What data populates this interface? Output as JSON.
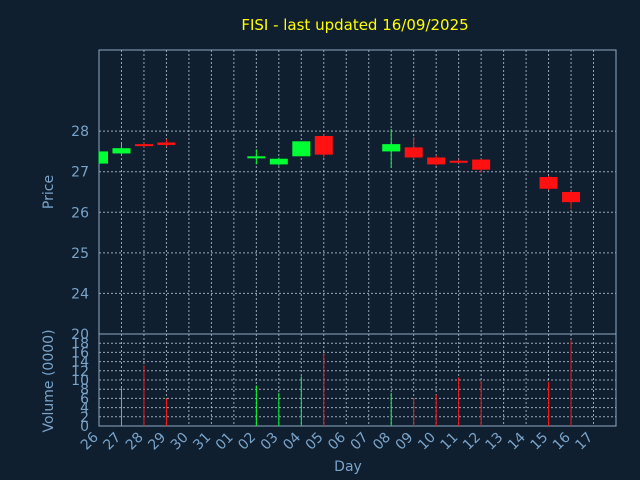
{
  "chart_data": {
    "type": "candlestick",
    "title": "FISI - last updated 16/09/2025",
    "xlabel": "Day",
    "price_panel": {
      "ylabel": "Price",
      "ylim": [
        23,
        30
      ],
      "yticks": [
        "24",
        "25",
        "26",
        "27",
        "28"
      ],
      "grid": true
    },
    "volume_panel": {
      "ylabel": "Volume (0000)",
      "ylim": [
        0,
        20
      ],
      "yticks": [
        "0",
        "2",
        "4",
        "6",
        "8",
        "10",
        "12",
        "14",
        "16",
        "18",
        "20"
      ],
      "grid": true
    },
    "x_ticks": [
      "26",
      "27",
      "28",
      "29",
      "30",
      "31",
      "01",
      "02",
      "03",
      "04",
      "05",
      "06",
      "07",
      "08",
      "09",
      "10",
      "11",
      "12",
      "13",
      "14",
      "15",
      "16",
      "17"
    ],
    "candles": [
      {
        "x": "26",
        "open": 27.2,
        "high": 27.5,
        "low": 27.2,
        "close": 27.5,
        "volume": 0
      },
      {
        "x": "27",
        "open": 27.45,
        "high": 27.7,
        "low": 27.4,
        "close": 27.58,
        "volume": 8.2
      },
      {
        "x": "28",
        "open": 27.68,
        "high": 27.72,
        "low": 27.6,
        "close": 27.63,
        "volume": 13.2
      },
      {
        "x": "29",
        "open": 27.72,
        "high": 27.8,
        "low": 27.62,
        "close": 27.66,
        "volume": 6.0
      },
      {
        "x": "02",
        "open": 27.33,
        "high": 27.55,
        "low": 27.18,
        "close": 27.38,
        "volume": 8.8
      },
      {
        "x": "03",
        "open": 27.18,
        "high": 27.35,
        "low": 27.15,
        "close": 27.32,
        "volume": 7.2
      },
      {
        "x": "04",
        "open": 27.38,
        "high": 27.75,
        "low": 27.38,
        "close": 27.75,
        "volume": 10.8
      },
      {
        "x": "05",
        "open": 27.88,
        "high": 27.92,
        "low": 27.35,
        "close": 27.42,
        "volume": 15.8
      },
      {
        "x": "08",
        "open": 27.5,
        "high": 28.05,
        "low": 27.1,
        "close": 27.68,
        "volume": 7.2
      },
      {
        "x": "09",
        "open": 27.6,
        "high": 27.85,
        "low": 27.3,
        "close": 27.35,
        "volume": 6.0
      },
      {
        "x": "10",
        "open": 27.35,
        "high": 27.4,
        "low": 27.15,
        "close": 27.18,
        "volume": 6.8
      },
      {
        "x": "11",
        "open": 27.27,
        "high": 27.3,
        "low": 27.22,
        "close": 27.25,
        "volume": 10.6
      },
      {
        "x": "12",
        "open": 27.3,
        "high": 27.32,
        "low": 26.98,
        "close": 27.05,
        "volume": 9.8
      },
      {
        "x": "15",
        "open": 26.87,
        "high": 26.9,
        "low": 26.55,
        "close": 26.58,
        "volume": 9.6
      },
      {
        "x": "16",
        "open": 26.5,
        "high": 26.52,
        "low": 26.08,
        "close": 26.25,
        "volume": 18.6
      }
    ],
    "colors": {
      "up": "#00ff33",
      "down": "#ff1111",
      "background": "#0f1f30",
      "title": "#ffff00",
      "axis_text": "#7aa3c8",
      "frame": "#8fa8c0",
      "grid": "#c8d4e0"
    }
  }
}
